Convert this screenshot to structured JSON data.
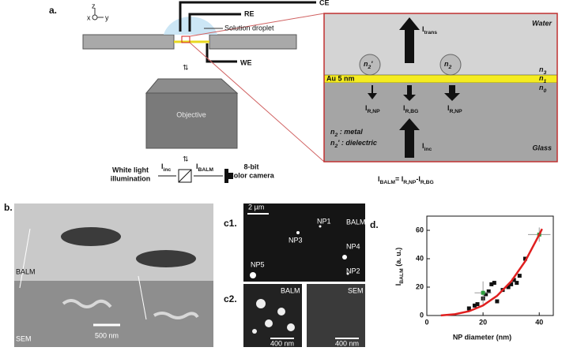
{
  "panel_a": {
    "label": "a.",
    "axes": [
      "z",
      "x",
      "y"
    ],
    "electrodes": [
      "CE",
      "RE",
      "WE"
    ],
    "droplet": "Solution droplet",
    "objective": "Objective",
    "illumination": [
      "White light",
      "illumination"
    ],
    "i_inc": {
      "main": "I",
      "sub": "inc"
    },
    "i_balm": {
      "main": "I",
      "sub": "BALM"
    },
    "camera": [
      "8-bit",
      "Color camera"
    ],
    "inset": {
      "water": "Water",
      "glass": "Glass",
      "i_trans": {
        "main": "I",
        "sub": "trans"
      },
      "n2p": {
        "main": "n",
        "sub": "2",
        "rest": "'"
      },
      "n2": {
        "main": "n",
        "sub": "2"
      },
      "n3": {
        "main": "n",
        "sub": "3"
      },
      "n1": {
        "main": "n",
        "sub": "1"
      },
      "n0": {
        "main": "n",
        "sub": "0"
      },
      "au": "Au 5 nm",
      "i_r_np_left": {
        "main": "I",
        "sub": "R,NP"
      },
      "i_r_bg": {
        "main": "I",
        "sub": "R,BG"
      },
      "i_r_np_right": {
        "main": "I",
        "sub": "R,NP"
      },
      "metal": {
        "main": "n",
        "sub": "2",
        "rest": " : metal"
      },
      "dielectric": {
        "main": "n",
        "sub": "2",
        "rest": "' : dielectric"
      },
      "i_inc": {
        "main": "I",
        "sub": "inc"
      }
    },
    "equation": {
      "main": "I",
      "sub": "BALM",
      "main2": "= I",
      "sub2": "R,NP",
      "main3": "-I",
      "sub3": "R,BG"
    }
  },
  "panel_b": {
    "label": "b.",
    "top": "BALM",
    "bottom": "SEM",
    "scale": "500 nm"
  },
  "panel_c": {
    "label1": "c1.",
    "scale1": "2 µm",
    "mode1": "BALM",
    "particles": [
      "NP1",
      "NP3",
      "NP4",
      "NP5",
      "NP2"
    ],
    "label2": "c2.",
    "mode2a": "BALM",
    "mode2b": "SEM",
    "scale2a": "400 nm",
    "scale2b": "400 nm"
  },
  "chart_data": {
    "type": "scatter",
    "label": "d.",
    "xlabel": "NP diameter (nm)",
    "ylabel": {
      "main": "I",
      "sub": "BALM",
      "rest": " (a. u.)"
    },
    "xlim": [
      0,
      45
    ],
    "ylim": [
      0,
      70
    ],
    "xticks": [
      0,
      20,
      40
    ],
    "yticks": [
      0,
      20,
      40,
      60
    ],
    "series": [
      {
        "color": "#111111",
        "mode": "markers",
        "x": [
          15,
          17,
          18,
          20,
          21,
          22,
          23,
          24,
          25,
          27,
          29,
          30,
          31,
          32,
          33,
          35
        ],
        "values": [
          5,
          7,
          8,
          12,
          15,
          17,
          22,
          23,
          10,
          18,
          20,
          22,
          25,
          23,
          28,
          40
        ]
      },
      {
        "color": "#2e9e3e",
        "mode": "markers",
        "x": [
          20,
          40
        ],
        "values": [
          16,
          57
        ],
        "errors": [
          8,
          5
        ],
        "x_errors": [
          3,
          4
        ]
      },
      {
        "color": "#e01f1f",
        "mode": "line",
        "x": [
          5,
          10,
          15,
          20,
          25,
          30,
          35,
          40,
          41
        ],
        "values": [
          0.1,
          0.9,
          3,
          7.1,
          13.9,
          24,
          38.2,
          57,
          61
        ]
      }
    ]
  }
}
